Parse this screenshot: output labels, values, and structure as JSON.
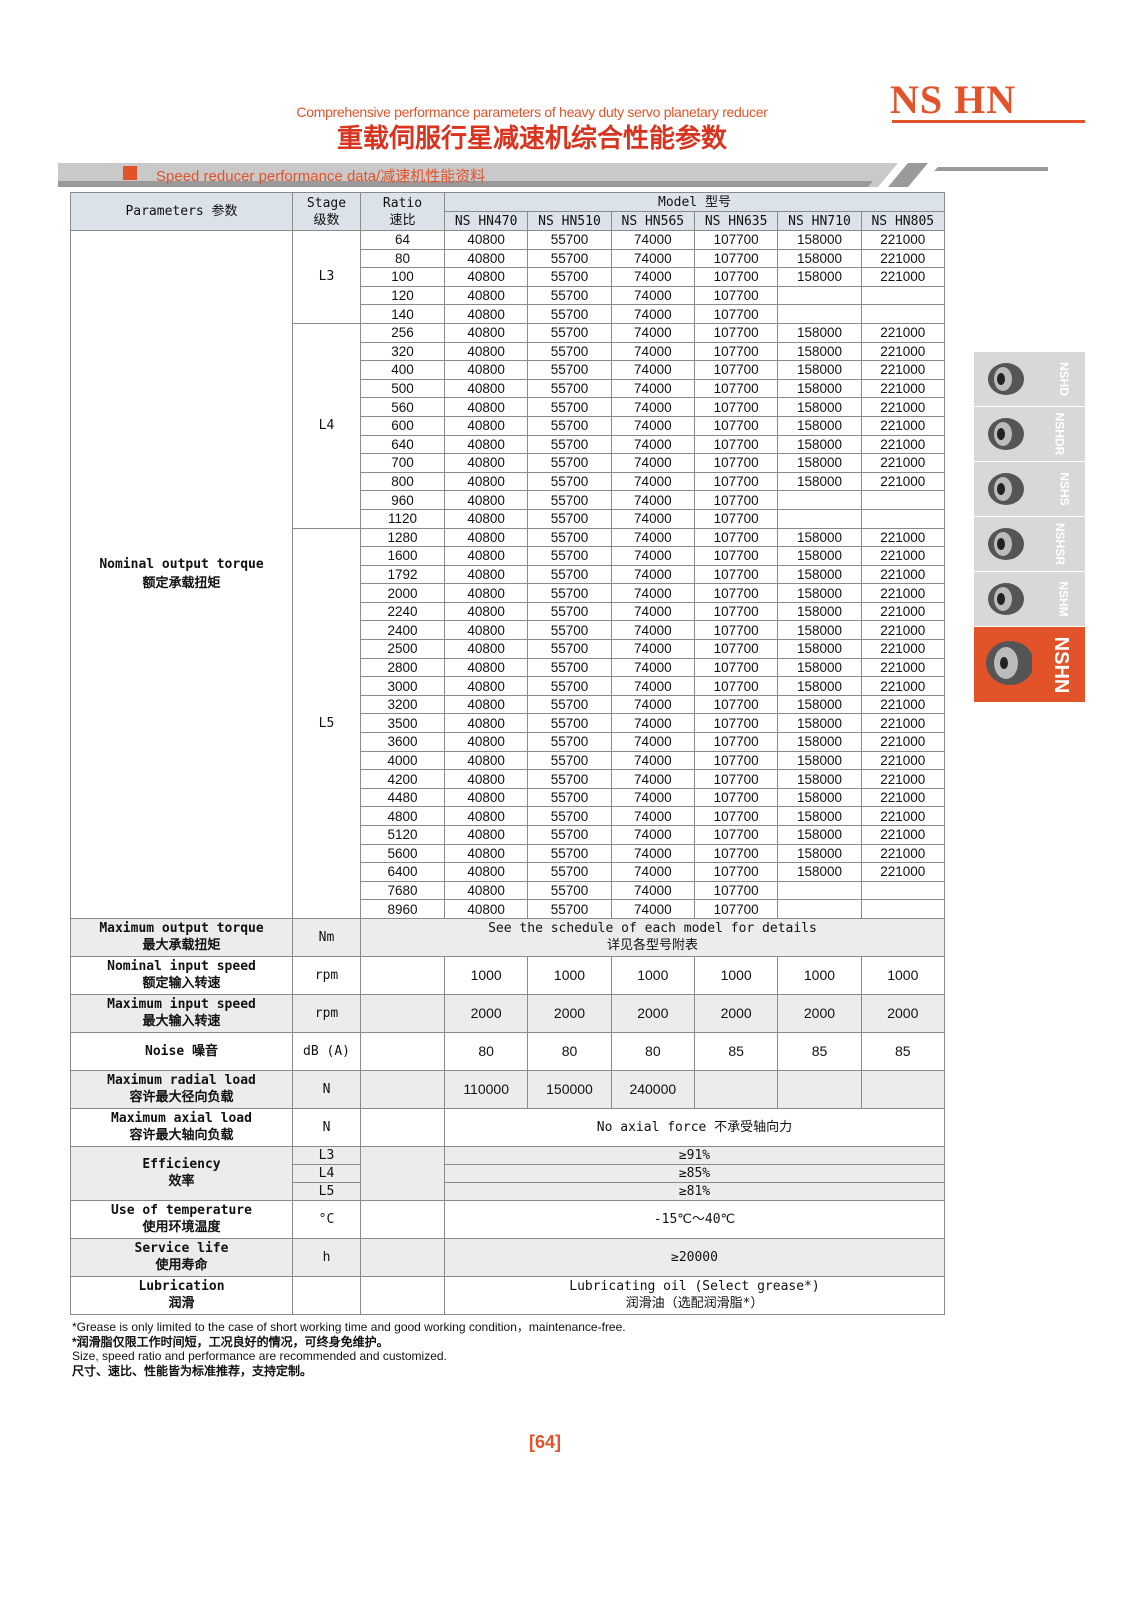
{
  "header": {
    "brand": "NS HN",
    "subtitle_en": "Comprehensive performance parameters of heavy duty servo planetary reducer",
    "title_cn": "重载伺服行星减速机综合性能参数",
    "section": "Speed reducer performance data/减速机性能资料"
  },
  "table": {
    "head": {
      "parameters": "Parameters 参数",
      "stage_en": "Stage",
      "stage_cn": "级数",
      "ratio_en": "Ratio",
      "ratio_cn": "速比",
      "model": "Model 型号",
      "models": [
        "NS HN470",
        "NS HN510",
        "NS HN565",
        "NS HN635",
        "NS HN710",
        "NS HN805"
      ]
    },
    "torque": {
      "label_en": "Nominal output torque",
      "label_cn": "额定承载扭矩",
      "stages": [
        {
          "stage": "L3",
          "rows": [
            [
              64,
              40800,
              55700,
              74000,
              107700,
              158000,
              221000
            ],
            [
              80,
              40800,
              55700,
              74000,
              107700,
              158000,
              221000
            ],
            [
              100,
              40800,
              55700,
              74000,
              107700,
              158000,
              221000
            ],
            [
              120,
              40800,
              55700,
              74000,
              107700
            ],
            [
              140,
              40800,
              55700,
              74000,
              107700
            ]
          ]
        },
        {
          "stage": "L4",
          "rows": [
            [
              256,
              40800,
              55700,
              74000,
              107700,
              158000,
              221000
            ],
            [
              320,
              40800,
              55700,
              74000,
              107700,
              158000,
              221000
            ],
            [
              400,
              40800,
              55700,
              74000,
              107700,
              158000,
              221000
            ],
            [
              500,
              40800,
              55700,
              74000,
              107700,
              158000,
              221000
            ],
            [
              560,
              40800,
              55700,
              74000,
              107700,
              158000,
              221000
            ],
            [
              600,
              40800,
              55700,
              74000,
              107700,
              158000,
              221000
            ],
            [
              640,
              40800,
              55700,
              74000,
              107700,
              158000,
              221000
            ],
            [
              700,
              40800,
              55700,
              74000,
              107700,
              158000,
              221000
            ],
            [
              800,
              40800,
              55700,
              74000,
              107700,
              158000,
              221000
            ],
            [
              960,
              40800,
              55700,
              74000,
              107700
            ],
            [
              1120,
              40800,
              55700,
              74000,
              107700
            ]
          ]
        },
        {
          "stage": "L5",
          "rows": [
            [
              1280,
              40800,
              55700,
              74000,
              107700,
              158000,
              221000
            ],
            [
              1600,
              40800,
              55700,
              74000,
              107700,
              158000,
              221000
            ],
            [
              1792,
              40800,
              55700,
              74000,
              107700,
              158000,
              221000
            ],
            [
              2000,
              40800,
              55700,
              74000,
              107700,
              158000,
              221000
            ],
            [
              2240,
              40800,
              55700,
              74000,
              107700,
              158000,
              221000
            ],
            [
              2400,
              40800,
              55700,
              74000,
              107700,
              158000,
              221000
            ],
            [
              2500,
              40800,
              55700,
              74000,
              107700,
              158000,
              221000
            ],
            [
              2800,
              40800,
              55700,
              74000,
              107700,
              158000,
              221000
            ],
            [
              3000,
              40800,
              55700,
              74000,
              107700,
              158000,
              221000
            ],
            [
              3200,
              40800,
              55700,
              74000,
              107700,
              158000,
              221000
            ],
            [
              3500,
              40800,
              55700,
              74000,
              107700,
              158000,
              221000
            ],
            [
              3600,
              40800,
              55700,
              74000,
              107700,
              158000,
              221000
            ],
            [
              4000,
              40800,
              55700,
              74000,
              107700,
              158000,
              221000
            ],
            [
              4200,
              40800,
              55700,
              74000,
              107700,
              158000,
              221000
            ],
            [
              4480,
              40800,
              55700,
              74000,
              107700,
              158000,
              221000
            ],
            [
              4800,
              40800,
              55700,
              74000,
              107700,
              158000,
              221000
            ],
            [
              5120,
              40800,
              55700,
              74000,
              107700,
              158000,
              221000
            ],
            [
              5600,
              40800,
              55700,
              74000,
              107700,
              158000,
              221000
            ],
            [
              6400,
              40800,
              55700,
              74000,
              107700,
              158000,
              221000
            ],
            [
              7680,
              40800,
              55700,
              74000,
              107700
            ],
            [
              8960,
              40800,
              55700,
              74000,
              107700
            ]
          ]
        }
      ]
    },
    "rows": [
      {
        "label_en": "Maximum output torque",
        "label_cn": "最大承载扭矩",
        "unit": "Nm",
        "detail_lines": [
          "See the schedule of each model for details",
          "详见各型号附表"
        ]
      },
      {
        "label_en": "Nominal input speed",
        "label_cn": "额定输入转速",
        "unit": "rpm",
        "values": [
          1000,
          1000,
          1000,
          1000,
          1000,
          1000
        ]
      },
      {
        "label_en": "Maximum input speed",
        "label_cn": "最大输入转速",
        "unit": "rpm",
        "values": [
          2000,
          2000,
          2000,
          2000,
          2000,
          2000
        ]
      },
      {
        "label_en": "Noise 噪音",
        "unit": "dB (A)",
        "values": [
          80,
          80,
          80,
          85,
          85,
          85
        ]
      },
      {
        "label_en": "Maximum radial load",
        "label_cn": "容许最大径向负载",
        "unit": "N",
        "values": [
          110000,
          150000,
          240000
        ]
      },
      {
        "label_en": "Maximum axial load",
        "label_cn": "容许最大轴向负载",
        "unit": "N",
        "text_lines": [
          "No axial force 不承受轴向力"
        ]
      },
      {
        "label_en": "Efficiency",
        "label_cn": "效率",
        "stages": [
          {
            "stage": "L3",
            "value": "≥91%"
          },
          {
            "stage": "L4",
            "value": "≥85%"
          },
          {
            "stage": "L5",
            "value": "≥81%"
          }
        ]
      },
      {
        "label_en": "Use of temperature",
        "label_cn": "使用环境温度",
        "unit": "°C",
        "text_lines": [
          "-15℃～40℃"
        ]
      },
      {
        "label_en": "Service life",
        "label_cn": "使用寿命",
        "unit": "h",
        "text_lines": [
          "≥20000"
        ]
      },
      {
        "label_en": "Lubrication",
        "label_cn": "润滑",
        "text_lines": [
          "Lubricating oil (Select grease*)",
          "润滑油（选配润滑脂*）"
        ]
      }
    ]
  },
  "notes": [
    "*Grease is only limited to the case of short working time and good working condition，maintenance-free.",
    "*润滑脂仅限工作时间短，工况良好的情况，可终身免维护。",
    "Size, speed ratio and performance are recommended and customized.",
    "尺寸、速比、性能皆为标准推荐，支持定制。"
  ],
  "page_number": "[64]",
  "tabs": [
    "NSHD",
    "NSHDR",
    "NSHS",
    "NSHSR",
    "NSHM",
    "NSHN"
  ],
  "active_tab": 5
}
